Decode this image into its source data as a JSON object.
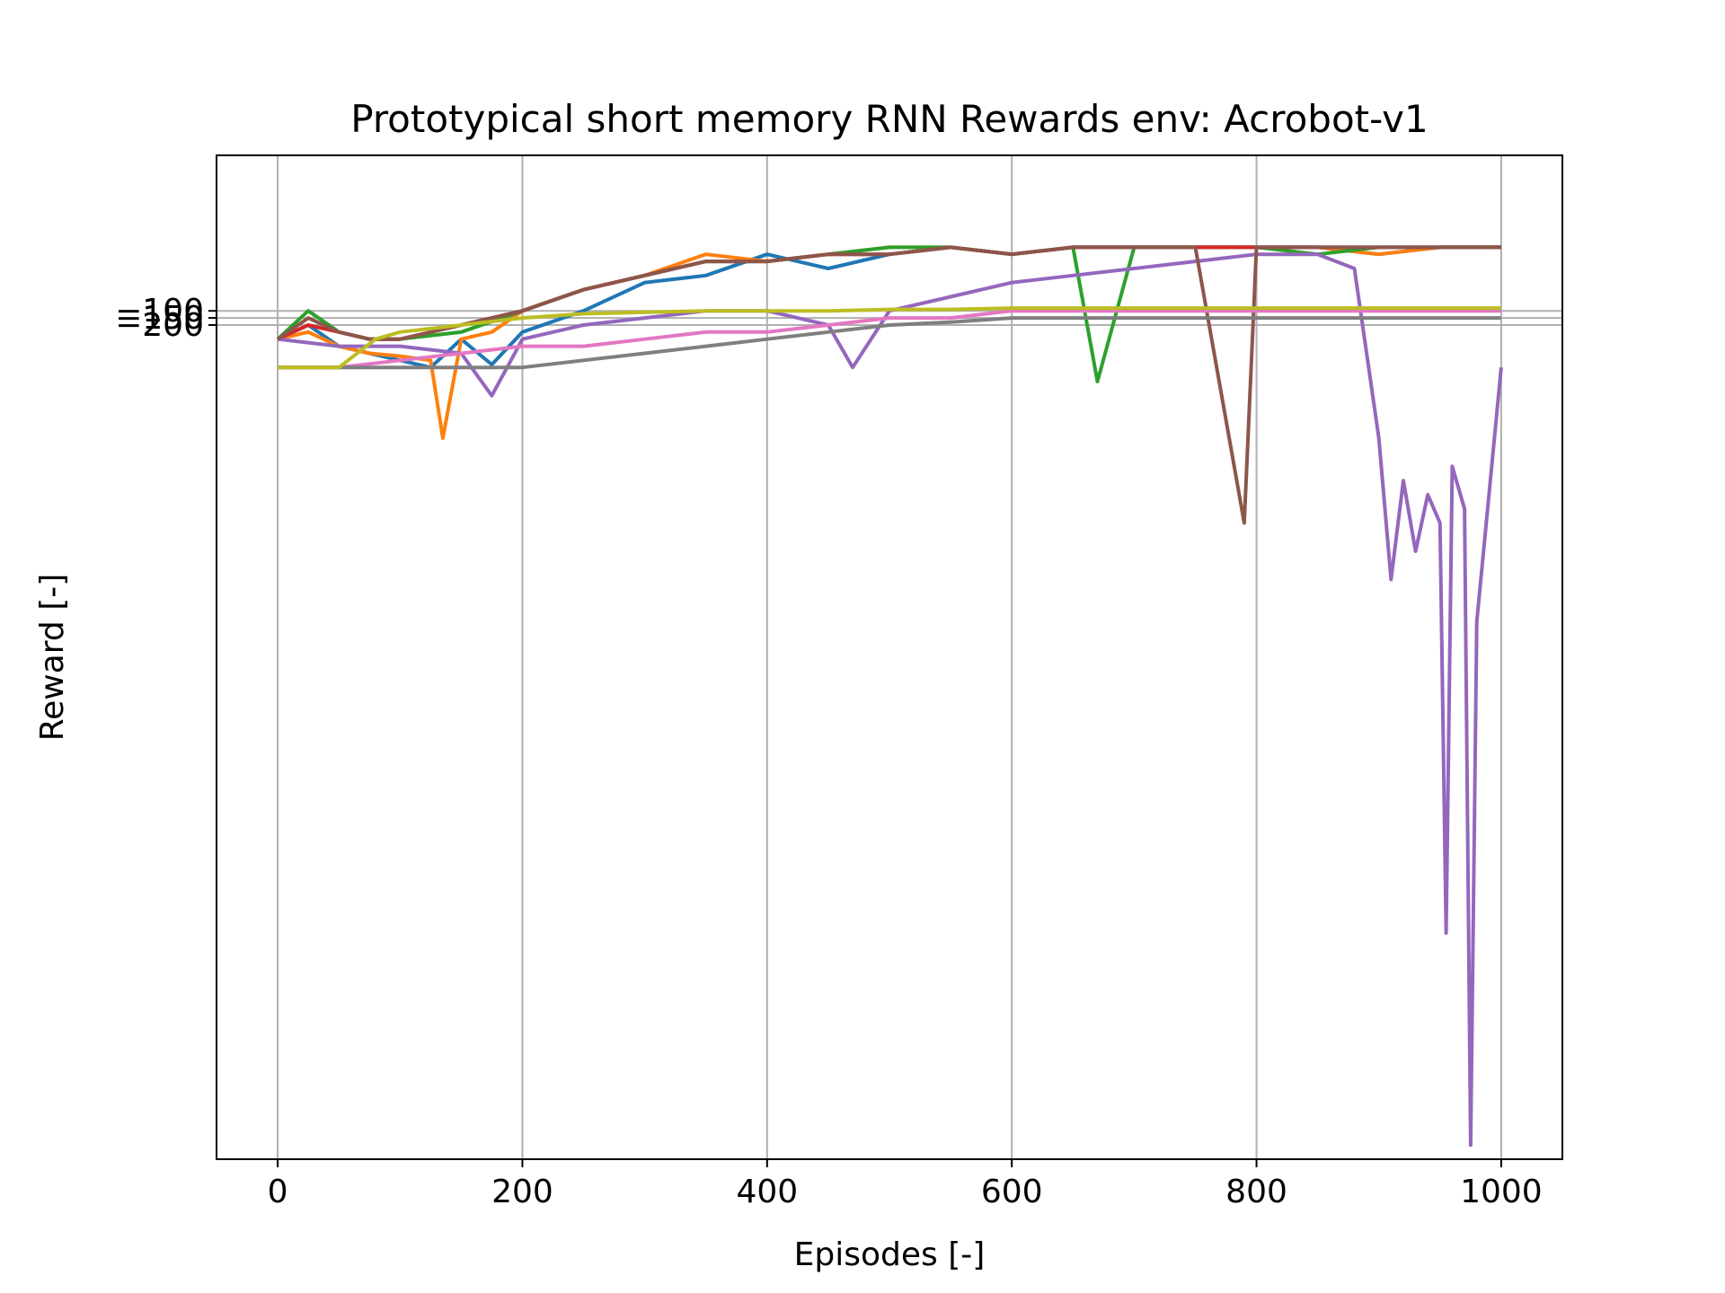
{
  "chart_data": {
    "type": "line",
    "title": "Prototypical short memory RNN Rewards env: Acrobot-v1",
    "xlabel": "Episodes [-]",
    "ylabel": "Reward [-]",
    "xlim": [
      -50,
      1050
    ],
    "ylim": [
      -6100,
      1000
    ],
    "xticks": [
      0,
      200,
      400,
      600,
      800,
      1000
    ],
    "xtick_labels": [
      "0",
      "200",
      "400",
      "600",
      "800",
      "1000"
    ],
    "yticks": [
      -100,
      -150,
      -200
    ],
    "ytick_labels": [
      "−100",
      "−150",
      "−200"
    ],
    "grid": true,
    "legend": "none",
    "series": [
      {
        "color": "#1f77b4",
        "x": [
          0,
          25,
          50,
          75,
          100,
          125,
          150,
          175,
          200,
          250,
          300,
          350,
          400,
          450,
          500,
          550,
          600,
          650,
          700,
          750,
          800,
          850,
          900,
          950,
          1000
        ],
        "y": [
          -300,
          -200,
          -350,
          -400,
          -450,
          -500,
          -300,
          -480,
          -250,
          -100,
          100,
          150,
          300,
          200,
          300,
          350,
          300,
          350,
          350,
          350,
          350,
          350,
          300,
          350,
          350
        ]
      },
      {
        "color": "#ff7f0e",
        "x": [
          0,
          25,
          50,
          75,
          100,
          125,
          135,
          150,
          175,
          200,
          250,
          300,
          350,
          400,
          450,
          500,
          550,
          600,
          650,
          700,
          750,
          800,
          850,
          900,
          950,
          1000
        ],
        "y": [
          -300,
          -250,
          -350,
          -400,
          -420,
          -450,
          -1000,
          -300,
          -250,
          -100,
          50,
          150,
          300,
          250,
          300,
          350,
          350,
          300,
          350,
          350,
          350,
          350,
          350,
          300,
          350,
          350
        ]
      },
      {
        "color": "#2ca02c",
        "x": [
          0,
          25,
          50,
          75,
          100,
          150,
          200,
          250,
          300,
          350,
          400,
          450,
          500,
          550,
          600,
          650,
          670,
          700,
          750,
          800,
          850,
          900,
          950,
          1000
        ],
        "y": [
          -300,
          -100,
          -250,
          -300,
          -300,
          -250,
          -100,
          50,
          150,
          250,
          250,
          300,
          350,
          350,
          300,
          350,
          -600,
          350,
          350,
          350,
          300,
          350,
          350,
          350
        ]
      },
      {
        "color": "#d62728",
        "x": [
          0,
          25,
          50,
          75,
          100,
          150,
          200,
          250,
          300,
          350,
          400,
          450,
          500,
          550,
          600,
          650,
          700,
          750,
          800,
          850,
          900,
          950,
          1000
        ],
        "y": [
          -300,
          -200,
          -250,
          -300,
          -300,
          -200,
          -100,
          50,
          150,
          250,
          250,
          300,
          300,
          350,
          300,
          350,
          350,
          350,
          350,
          350,
          350,
          350,
          350
        ]
      },
      {
        "color": "#9467bd",
        "x": [
          0,
          50,
          100,
          150,
          175,
          200,
          250,
          300,
          350,
          400,
          450,
          470,
          500,
          550,
          600,
          650,
          700,
          750,
          800,
          850,
          880,
          900,
          910,
          920,
          930,
          940,
          950,
          955,
          960,
          970,
          975,
          980,
          990,
          1000
        ],
        "y": [
          -300,
          -350,
          -350,
          -400,
          -700,
          -300,
          -200,
          -150,
          -100,
          -100,
          -200,
          -500,
          -100,
          0,
          100,
          150,
          200,
          250,
          300,
          300,
          200,
          -1000,
          -2000,
          -1300,
          -1800,
          -1400,
          -1600,
          -4500,
          -1200,
          -1500,
          -6000,
          -2300,
          -1400,
          -500
        ]
      },
      {
        "color": "#8c564b",
        "x": [
          0,
          25,
          50,
          75,
          100,
          150,
          200,
          250,
          300,
          350,
          400,
          450,
          500,
          550,
          600,
          650,
          700,
          750,
          790,
          800,
          850,
          900,
          950,
          1000
        ],
        "y": [
          -300,
          -150,
          -250,
          -300,
          -300,
          -200,
          -100,
          50,
          150,
          250,
          250,
          300,
          300,
          350,
          300,
          350,
          350,
          350,
          -1600,
          350,
          350,
          350,
          350,
          350
        ]
      },
      {
        "color": "#e377c2",
        "x": [
          0,
          50,
          100,
          150,
          200,
          250,
          300,
          350,
          400,
          450,
          500,
          550,
          600,
          650,
          700,
          750,
          800,
          850,
          900,
          950,
          1000
        ],
        "y": [
          -500,
          -500,
          -450,
          -400,
          -350,
          -350,
          -300,
          -250,
          -250,
          -200,
          -150,
          -150,
          -100,
          -100,
          -100,
          -100,
          -100,
          -100,
          -100,
          -100,
          -100
        ]
      },
      {
        "color": "#7f7f7f",
        "x": [
          0,
          50,
          100,
          150,
          200,
          250,
          300,
          350,
          400,
          450,
          500,
          550,
          600,
          650,
          700,
          750,
          800,
          850,
          900,
          950,
          1000
        ],
        "y": [
          -500,
          -500,
          -500,
          -500,
          -500,
          -450,
          -400,
          -350,
          -300,
          -250,
          -200,
          -180,
          -150,
          -150,
          -150,
          -150,
          -150,
          -150,
          -150,
          -150,
          -150
        ]
      },
      {
        "color": "#bcbd22",
        "x": [
          0,
          50,
          80,
          100,
          150,
          200,
          250,
          300,
          350,
          400,
          450,
          500,
          550,
          600,
          650,
          700,
          750,
          800,
          850,
          900,
          950,
          1000
        ],
        "y": [
          -500,
          -500,
          -300,
          -250,
          -200,
          -150,
          -120,
          -110,
          -100,
          -100,
          -100,
          -90,
          -90,
          -80,
          -80,
          -80,
          -80,
          -80,
          -80,
          -80,
          -80,
          -80
        ]
      }
    ]
  }
}
